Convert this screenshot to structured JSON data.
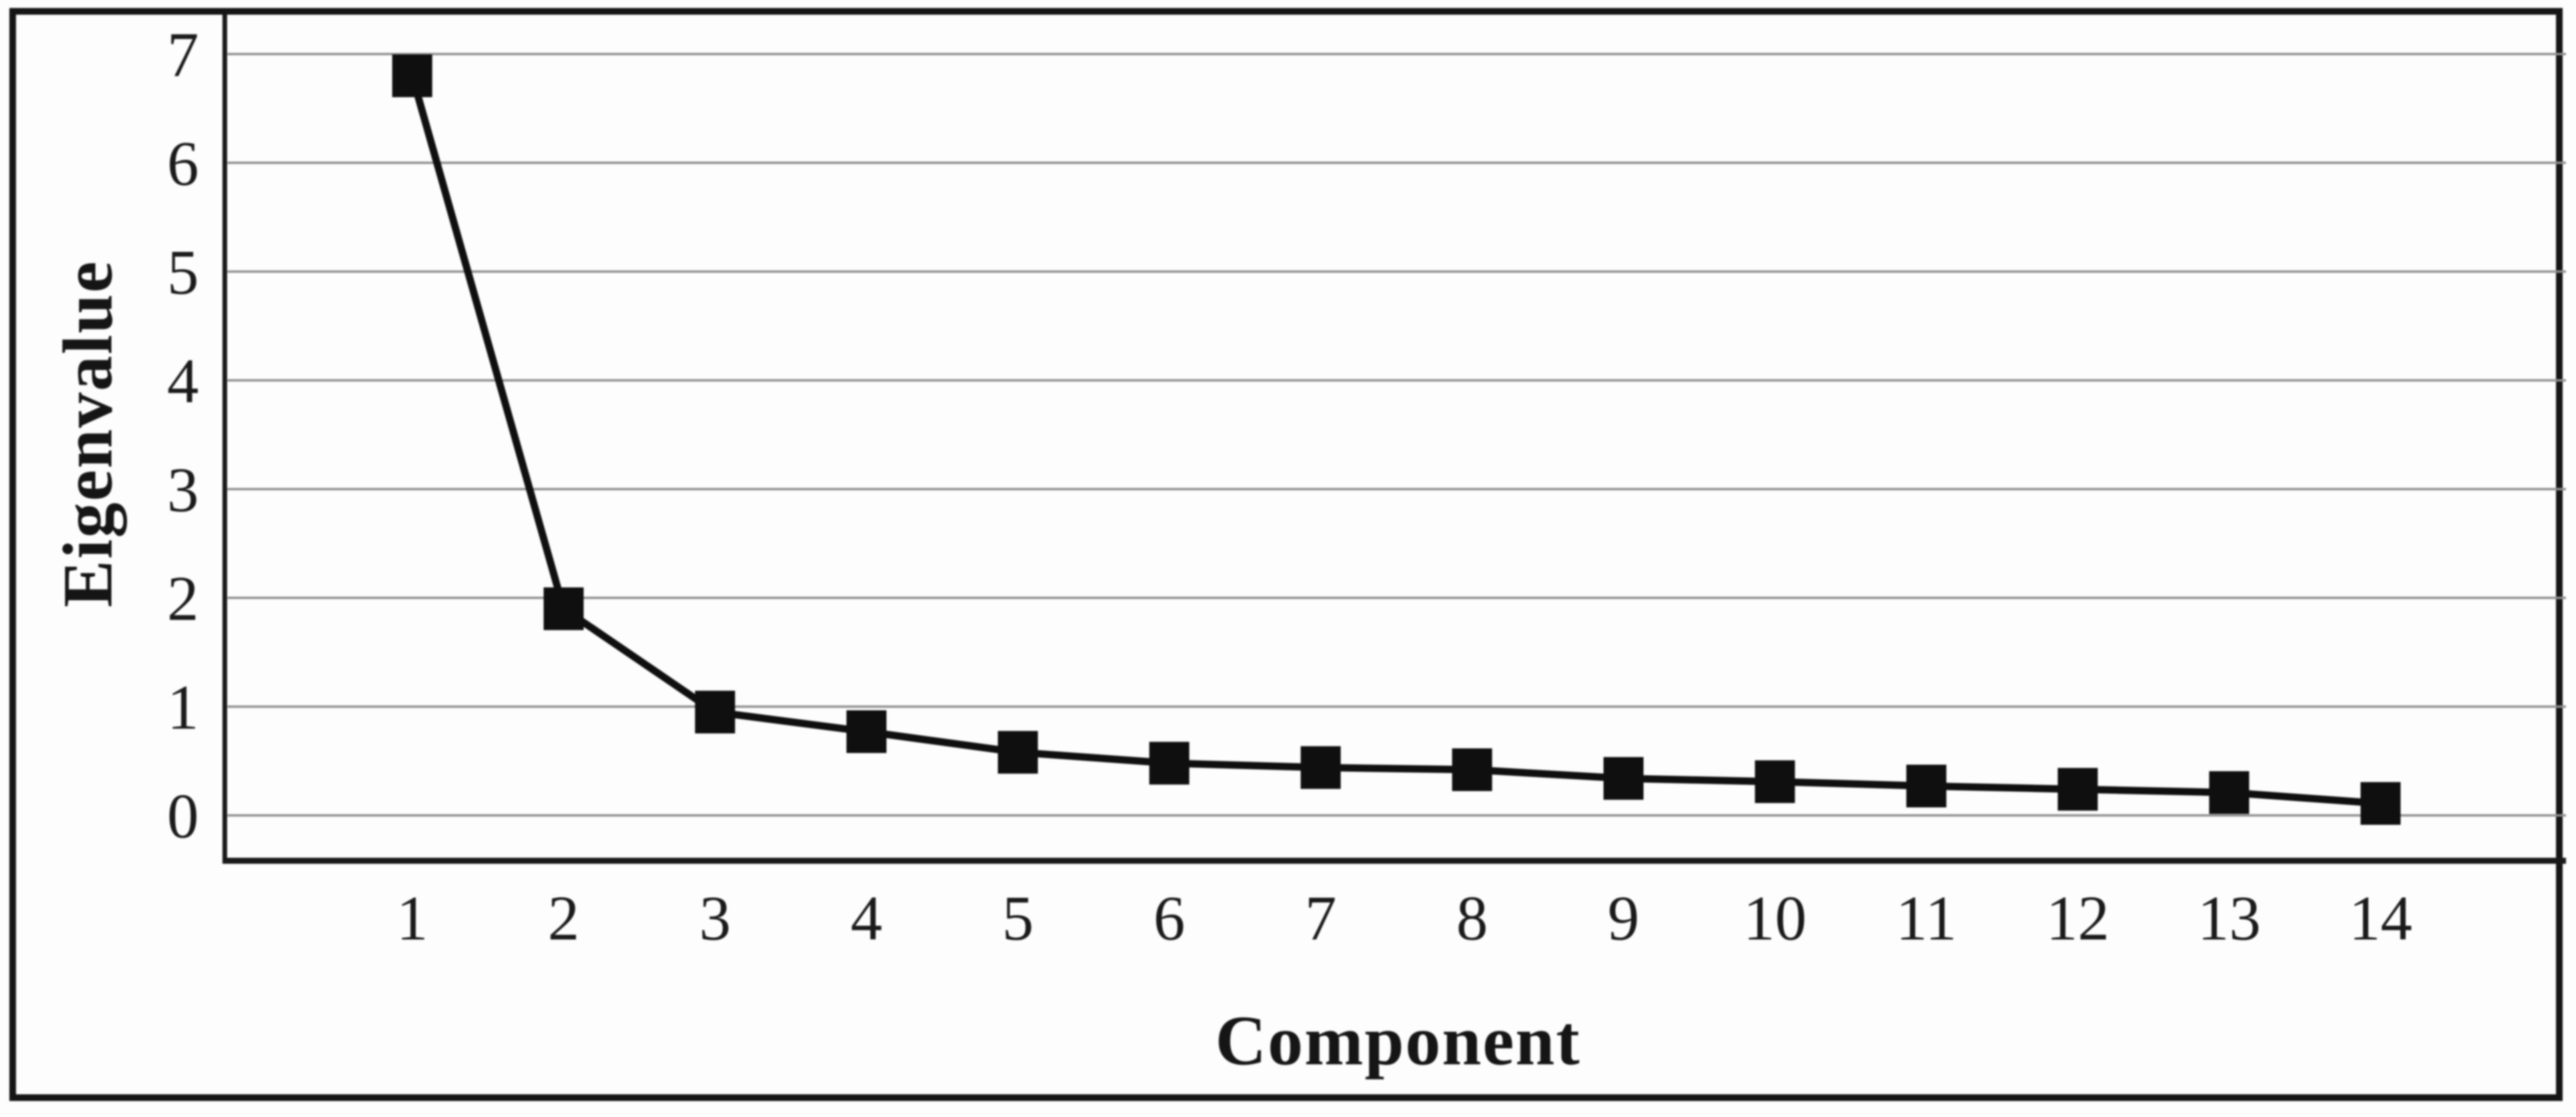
{
  "figure": {
    "kind": "scanned scree plot figure",
    "background_color": "#fdfdfd",
    "border_color": "#161616"
  },
  "chart_data": {
    "type": "line",
    "title": "",
    "xlabel": "Component",
    "ylabel": "Eigenvalue",
    "x": [
      1,
      2,
      3,
      4,
      5,
      6,
      7,
      8,
      9,
      10,
      11,
      12,
      13,
      14
    ],
    "series": [
      {
        "name": "Eigenvalue",
        "values": [
          6.8,
          1.9,
          0.95,
          0.77,
          0.58,
          0.48,
          0.44,
          0.42,
          0.34,
          0.31,
          0.27,
          0.24,
          0.21,
          0.11
        ]
      }
    ],
    "x_tick_labels": [
      "1",
      "2",
      "3",
      "4",
      "5",
      "6",
      "7",
      "8",
      "9",
      "10",
      "11",
      "12",
      "13",
      "14"
    ],
    "y_tick_labels": [
      "0",
      "1",
      "2",
      "3",
      "4",
      "5",
      "6",
      "7"
    ],
    "yticks": [
      0,
      1,
      2,
      3,
      4,
      5,
      6,
      7
    ],
    "ylim": [
      -0.42,
      7.35
    ],
    "grid": true,
    "legend": "none",
    "marker": "filled-square",
    "line_color": "#101010",
    "marker_color": "#101010",
    "grid_color": "#8f8f8f",
    "axis_color": "#1a1a1a",
    "tick_label_color": "#1b1b1b"
  }
}
